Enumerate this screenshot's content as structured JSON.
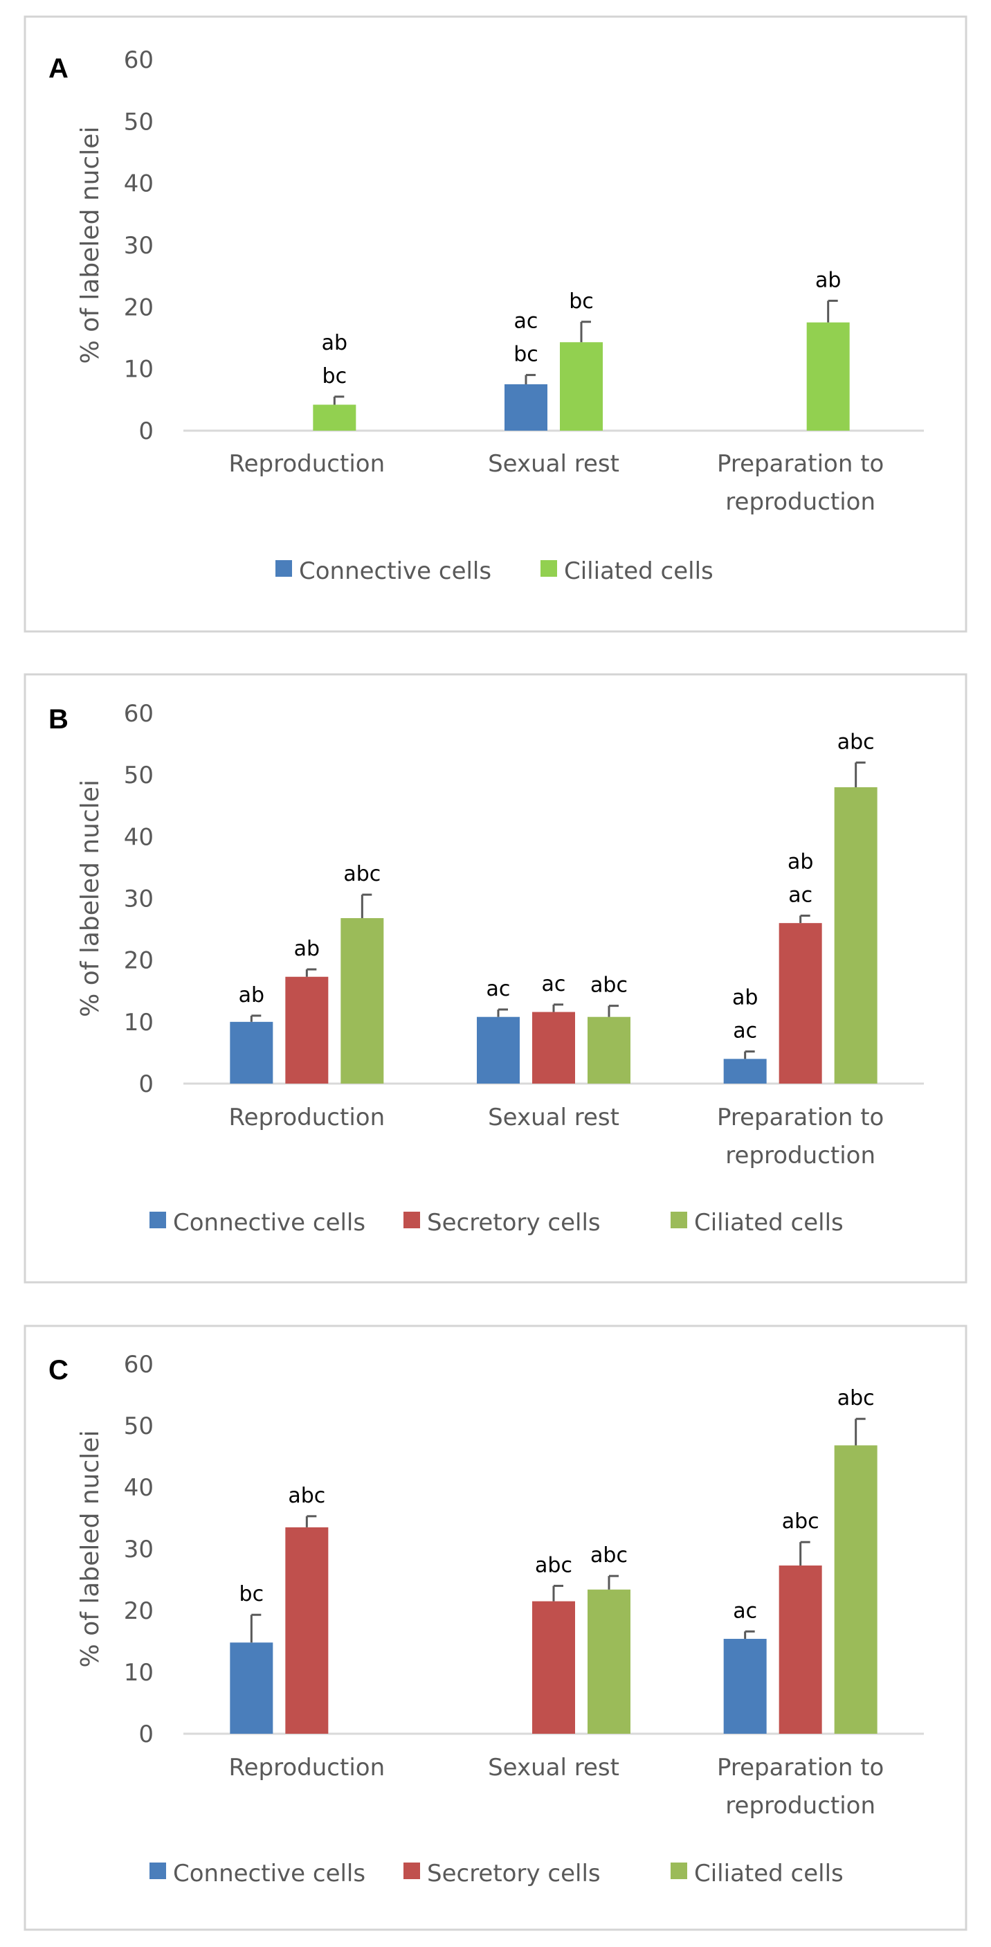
{
  "colors": {
    "connective": "#4a7ebb",
    "secretory": "#c0504d",
    "ciliated_a": "#92d050",
    "ciliated": "#9bbb59"
  },
  "chart_data": [
    {
      "type": "bar",
      "panel": "A",
      "ylabel": "% of labeled nuclei",
      "ylim": [
        0,
        60
      ],
      "yticks": [
        "0",
        "10",
        "20",
        "30",
        "40",
        "50",
        "60"
      ],
      "categories": [
        [
          "Reproduction"
        ],
        [
          "Sexual rest"
        ],
        [
          "Preparation to",
          "reproduction"
        ]
      ],
      "series": [
        {
          "name": "Connective cells",
          "color": "#4a7ebb",
          "values": [
            null,
            7.5,
            null
          ],
          "errors": [
            0,
            1.5,
            0
          ],
          "sig": [
            [],
            [
              "ac",
              "bc"
            ],
            []
          ]
        },
        {
          "name": "Ciliated cells",
          "color": "#92d050",
          "values": [
            4.2,
            14.3,
            17.5
          ],
          "errors": [
            1.3,
            3.3,
            3.5
          ],
          "sig": [
            [
              "ab",
              "bc"
            ],
            [
              "bc"
            ],
            [
              "ab"
            ]
          ]
        }
      ],
      "legend": [
        "Connective cells",
        "Ciliated cells"
      ]
    },
    {
      "type": "bar",
      "panel": "B",
      "ylabel": "% of labeled nuclei",
      "ylim": [
        0,
        60
      ],
      "yticks": [
        "0",
        "10",
        "20",
        "30",
        "40",
        "50",
        "60"
      ],
      "categories": [
        [
          "Reproduction"
        ],
        [
          "Sexual rest"
        ],
        [
          "Preparation to",
          "reproduction"
        ]
      ],
      "series": [
        {
          "name": "Connective cells",
          "color": "#4a7ebb",
          "values": [
            10,
            10.8,
            4
          ],
          "errors": [
            1,
            1.2,
            1.2
          ],
          "sig": [
            [
              "ab"
            ],
            [
              "ac"
            ],
            [
              "ab",
              "ac"
            ]
          ]
        },
        {
          "name": "Secretory cells",
          "color": "#c0504d",
          "values": [
            17.3,
            11.6,
            26
          ],
          "errors": [
            1.2,
            1.2,
            1.2
          ],
          "sig": [
            [
              "ab"
            ],
            [
              "ac"
            ],
            [
              "ab",
              "ac"
            ]
          ]
        },
        {
          "name": "Ciliated cells",
          "color": "#9bbb59",
          "values": [
            26.8,
            10.8,
            48
          ],
          "errors": [
            3.8,
            1.8,
            4
          ],
          "sig": [
            [
              "abc"
            ],
            [
              "abc"
            ],
            [
              "abc"
            ]
          ]
        }
      ],
      "legend": [
        "Connective cells",
        "Secretory cells",
        "Ciliated cells"
      ]
    },
    {
      "type": "bar",
      "panel": "C",
      "ylabel": "% of labeled nuclei",
      "ylim": [
        0,
        60
      ],
      "yticks": [
        "0",
        "10",
        "20",
        "30",
        "40",
        "50",
        "60"
      ],
      "categories": [
        [
          "Reproduction"
        ],
        [
          "Sexual rest"
        ],
        [
          "Preparation to",
          "reproduction"
        ]
      ],
      "series": [
        {
          "name": "Connective cells",
          "color": "#4a7ebb",
          "values": [
            14.8,
            null,
            15.4
          ],
          "errors": [
            4.5,
            0,
            1.2
          ],
          "sig": [
            [
              "bc"
            ],
            [],
            [
              "ac"
            ]
          ]
        },
        {
          "name": "Secretory cells",
          "color": "#c0504d",
          "values": [
            33.5,
            21.5,
            27.3
          ],
          "errors": [
            1.8,
            2.5,
            3.8
          ],
          "sig": [
            [
              "abc"
            ],
            [
              "abc"
            ],
            [
              "abc"
            ]
          ]
        },
        {
          "name": "Ciliated cells",
          "color": "#9bbb59",
          "values": [
            null,
            23.4,
            46.8
          ],
          "errors": [
            0,
            2.2,
            4.3
          ],
          "sig": [
            [],
            [
              "abc"
            ],
            [
              "abc"
            ]
          ]
        }
      ],
      "legend": [
        "Connective cells",
        "Secretory cells",
        "Ciliated cells"
      ]
    }
  ]
}
